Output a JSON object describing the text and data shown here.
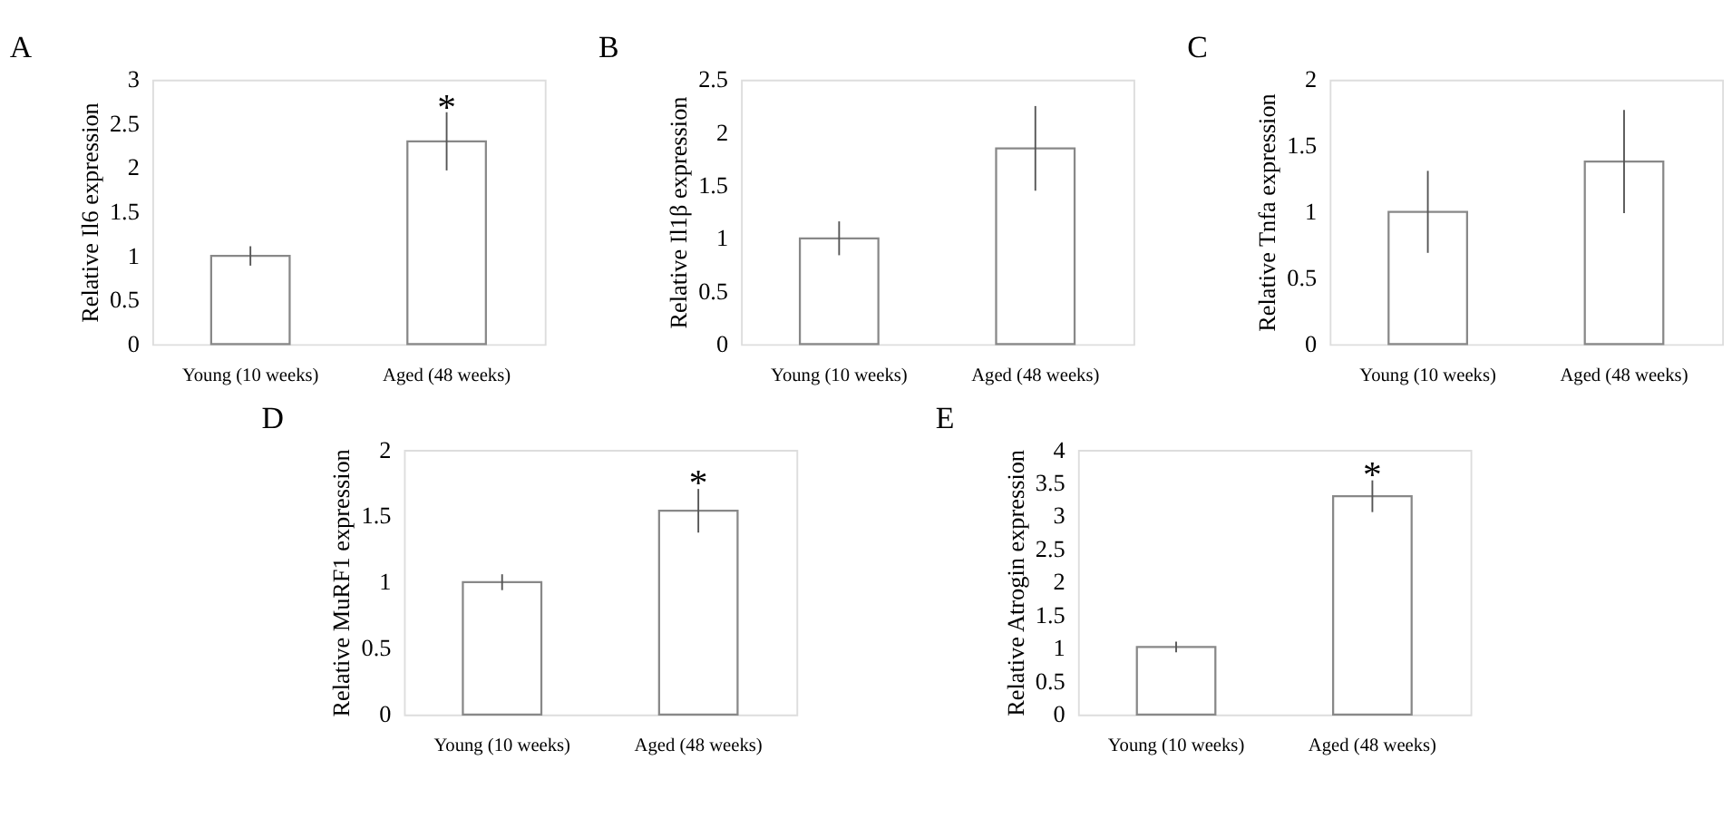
{
  "chart_data": [
    {
      "type": "bar",
      "title": "A",
      "ylabel": "Relative Il6 expression",
      "categories": [
        "Young (10 weeks)",
        "Aged (48 weeks)"
      ],
      "values": [
        1.0,
        2.3
      ],
      "errors": [
        0.11,
        0.33
      ],
      "colors": [
        "#ffffff",
        "#ffffff"
      ],
      "ylim": [
        0,
        3
      ],
      "yticks": [
        0,
        0.5,
        1,
        1.5,
        2,
        2.5,
        3
      ],
      "grid": false,
      "annotations": [
        {
          "text": "*",
          "x": "Aged (48 weeks)",
          "y": 2.68
        }
      ]
    },
    {
      "type": "bar",
      "title": "B",
      "ylabel": "Relative Il1β expression",
      "categories": [
        "Young (10 weeks)",
        "Aged (48 weeks)"
      ],
      "values": [
        1.0,
        1.85
      ],
      "errors": [
        0.16,
        0.4
      ],
      "colors": [
        "#ffffff",
        "#ffffff"
      ],
      "ylim": [
        0,
        2.5
      ],
      "yticks": [
        0,
        0.5,
        1,
        1.5,
        2,
        2.5
      ],
      "grid": false
    },
    {
      "type": "bar",
      "title": "C",
      "ylabel": "Relative Tnfa expression",
      "categories": [
        "Young (10 weeks)",
        "Aged (48 weeks)"
      ],
      "values": [
        1.0,
        1.38
      ],
      "errors": [
        0.31,
        0.39
      ],
      "colors": [
        "#ffffff",
        "#ffffff"
      ],
      "ylim": [
        0,
        2
      ],
      "yticks": [
        0,
        0.5,
        1,
        1.5,
        2
      ],
      "grid": false
    },
    {
      "type": "bar",
      "title": "D",
      "ylabel": "Relative MuRF1 expression",
      "categories": [
        "Young (10 weeks)",
        "Aged (48 weeks)"
      ],
      "values": [
        1.0,
        1.54
      ],
      "errors": [
        0.06,
        0.165
      ],
      "colors": [
        "#ffffff",
        "#ffffff"
      ],
      "ylim": [
        0,
        2
      ],
      "yticks": [
        0,
        0.5,
        1,
        1.5,
        2
      ],
      "grid": false,
      "annotations": [
        {
          "text": "*",
          "x": "Aged (48 weeks)",
          "y": 1.75
        }
      ]
    },
    {
      "type": "bar",
      "title": "E",
      "ylabel": "Relative Atrogin expression",
      "categories": [
        "Young (10 weeks)",
        "Aged (48 weeks)"
      ],
      "values": [
        1.02,
        3.3
      ],
      "errors": [
        0.08,
        0.24
      ],
      "colors": [
        "#ffffff",
        "#ffffff"
      ],
      "ylim": [
        0,
        4
      ],
      "yticks": [
        0,
        0.5,
        1,
        1.5,
        2,
        2.5,
        3,
        3.5,
        4
      ],
      "grid": false,
      "annotations": [
        {
          "text": "*",
          "x": "Aged (48 weeks)",
          "y": 3.62
        }
      ]
    }
  ]
}
